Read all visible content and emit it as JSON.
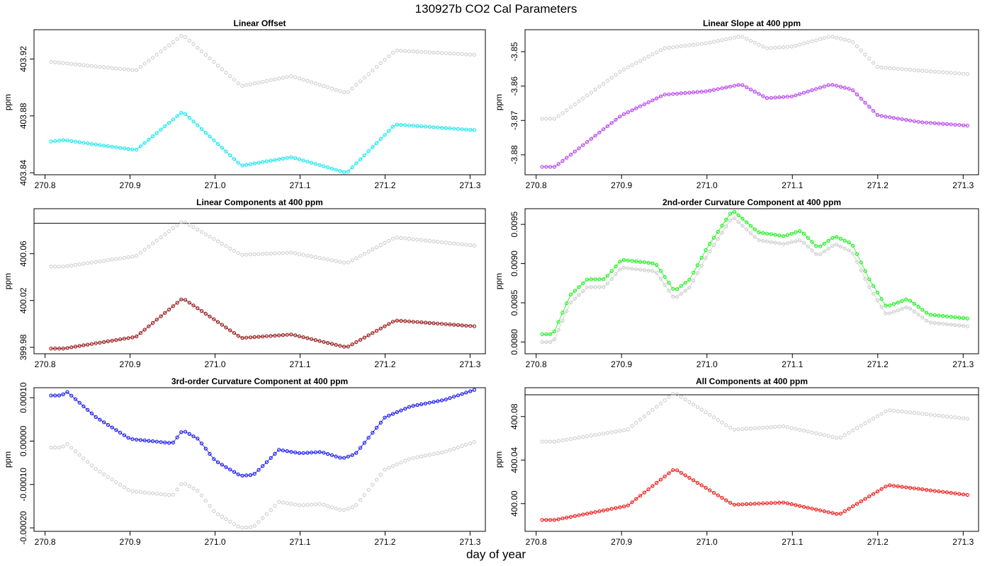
{
  "figure": {
    "title": "130927b   CO2 Cal Parameters",
    "xlabel": "day of year"
  },
  "chart_data": [
    {
      "type": "scatter",
      "title": "Linear Offset",
      "xlabel": "",
      "ylabel": "ppm",
      "xlim": [
        270.787,
        271.318
      ],
      "ylim": [
        403.8386,
        403.9406
      ],
      "xticks": [
        "270.8",
        "270.9",
        "271.0",
        "271.1",
        "271.2",
        "271.3"
      ],
      "xtick_values": [
        270.8,
        270.9,
        271.0,
        271.1,
        271.2,
        271.3
      ],
      "yticks": [
        "403.84",
        "403.88",
        "403.92"
      ],
      "ytick_values": [
        403.84,
        403.88,
        403.92
      ],
      "hline": null,
      "series": [
        {
          "role": "reference",
          "color": "#c8c8c8",
          "connect": false,
          "x": [
            270.807,
            270.907,
            270.962,
            271.031,
            271.09,
            271.155,
            271.212,
            271.305
          ],
          "y": [
            403.918,
            403.912,
            403.937,
            403.901,
            403.908,
            403.896,
            403.926,
            403.923
          ]
        },
        {
          "role": "current",
          "color": "#00e5ee",
          "connect": true,
          "x": [
            270.807,
            270.822,
            270.907,
            270.962,
            271.031,
            271.09,
            271.155,
            271.212,
            271.305
          ],
          "y": [
            403.862,
            403.863,
            403.856,
            403.883,
            403.845,
            403.851,
            403.84,
            403.874,
            403.87
          ]
        }
      ]
    },
    {
      "type": "scatter",
      "title": "Linear Slope at 400 ppm",
      "xlabel": "",
      "ylabel": "ppm",
      "xlim": [
        270.787,
        271.318
      ],
      "ylim": [
        -3.8858,
        -3.8436
      ],
      "xticks": [
        "270.8",
        "270.9",
        "271.0",
        "271.1",
        "271.2",
        "271.3"
      ],
      "xtick_values": [
        270.8,
        270.9,
        271.0,
        271.1,
        271.2,
        271.3
      ],
      "yticks": [
        "-3.88",
        "-3.87",
        "-3.86",
        "-3.85"
      ],
      "ytick_values": [
        -3.88,
        -3.87,
        -3.86,
        -3.85
      ],
      "hline": null,
      "series": [
        {
          "role": "reference",
          "color": "#c8c8c8",
          "connect": false,
          "x": [
            270.807,
            270.822,
            270.9,
            270.95,
            271.0,
            271.04,
            271.07,
            271.1,
            271.145,
            271.17,
            271.2,
            271.25,
            271.305
          ],
          "y": [
            -3.8695,
            -3.8695,
            -3.8555,
            -3.849,
            -3.8475,
            -3.8455,
            -3.849,
            -3.8485,
            -3.8455,
            -3.847,
            -3.8545,
            -3.8555,
            -3.8565
          ]
        },
        {
          "role": "current",
          "color": "#b030e8",
          "connect": true,
          "x": [
            270.807,
            270.822,
            270.9,
            270.95,
            271.0,
            271.04,
            271.07,
            271.1,
            271.145,
            271.17,
            271.2,
            271.25,
            271.305
          ],
          "y": [
            -3.8835,
            -3.8835,
            -3.8685,
            -3.8625,
            -3.8615,
            -3.8595,
            -3.8635,
            -3.863,
            -3.8595,
            -3.861,
            -3.8685,
            -3.8705,
            -3.8715
          ]
        }
      ]
    },
    {
      "type": "scatter",
      "title": "Linear Components at 400 ppm",
      "xlabel": "",
      "ylabel": "ppm",
      "xlim": [
        270.787,
        271.318
      ],
      "ylim": [
        399.9745,
        400.0985
      ],
      "xticks": [
        "270.8",
        "270.9",
        "271.0",
        "271.1",
        "271.2",
        "271.3"
      ],
      "xtick_values": [
        270.8,
        270.9,
        271.0,
        271.1,
        271.2,
        271.3
      ],
      "yticks": [
        "399.98",
        "400.02",
        "400.06"
      ],
      "ytick_values": [
        399.98,
        400.02,
        400.06
      ],
      "hline": 400.086,
      "series": [
        {
          "role": "reference",
          "color": "#c8c8c8",
          "connect": false,
          "x": [
            270.807,
            270.822,
            270.907,
            270.962,
            271.031,
            271.09,
            271.155,
            271.212,
            271.305
          ],
          "y": [
            400.049,
            400.049,
            400.058,
            400.088,
            400.059,
            400.061,
            400.052,
            400.074,
            400.067
          ]
        },
        {
          "role": "current",
          "color": "#8b0000",
          "connect": true,
          "x": [
            270.807,
            270.822,
            270.907,
            270.962,
            271.031,
            271.09,
            271.155,
            271.212,
            271.305
          ],
          "y": [
            399.979,
            399.979,
            399.989,
            400.022,
            399.988,
            399.991,
            399.98,
            400.003,
            399.998
          ]
        }
      ]
    },
    {
      "type": "scatter",
      "title": "2nd-order Curvature Component at 400 ppm",
      "xlabel": "",
      "ylabel": "ppm",
      "xlim": [
        270.787,
        271.318
      ],
      "ylim": [
        0.00785,
        0.0097
      ],
      "xticks": [
        "270.8",
        "270.9",
        "271.0",
        "271.1",
        "271.2",
        "271.3"
      ],
      "xtick_values": [
        270.8,
        270.9,
        271.0,
        271.1,
        271.2,
        271.3
      ],
      "yticks": [
        "0.0080",
        "0.0085",
        "0.0090",
        "0.0095"
      ],
      "ytick_values": [
        0.008,
        0.0085,
        0.009,
        0.0095
      ],
      "hline": null,
      "series": [
        {
          "role": "reference",
          "color": "#c8c8c8",
          "connect": true,
          "x": [
            270.807,
            270.82,
            270.84,
            270.86,
            270.88,
            270.9,
            270.94,
            270.962,
            270.98,
            271.0,
            271.03,
            271.06,
            271.09,
            271.11,
            271.13,
            271.15,
            271.17,
            271.19,
            271.21,
            271.235,
            271.26,
            271.305
          ],
          "y": [
            0.008,
            0.008,
            0.0085,
            0.0087,
            0.0087,
            0.00895,
            0.0089,
            0.00855,
            0.0087,
            0.0091,
            0.0096,
            0.0093,
            0.00925,
            0.0093,
            0.0091,
            0.00925,
            0.00915,
            0.0087,
            0.00835,
            0.00845,
            0.00825,
            0.0082
          ]
        },
        {
          "role": "current",
          "color": "#00ee00",
          "connect": true,
          "x": [
            270.807,
            270.82,
            270.84,
            270.86,
            270.88,
            270.9,
            270.94,
            270.962,
            270.98,
            271.0,
            271.03,
            271.06,
            271.09,
            271.11,
            271.13,
            271.15,
            271.17,
            271.19,
            271.21,
            271.235,
            271.26,
            271.305
          ],
          "y": [
            0.0081,
            0.0081,
            0.0086,
            0.0088,
            0.0088,
            0.00905,
            0.009,
            0.00865,
            0.0088,
            0.0092,
            0.00968,
            0.0094,
            0.00935,
            0.00942,
            0.0092,
            0.00935,
            0.00925,
            0.0088,
            0.00845,
            0.00855,
            0.00835,
            0.0083
          ]
        }
      ]
    },
    {
      "type": "scatter",
      "title": "3rd-order Curvature Component at 400 ppm",
      "xlabel": "",
      "ylabel": "ppm",
      "xlim": [
        270.787,
        271.318
      ],
      "ylim": [
        -0.000208,
        0.000123
      ],
      "xticks": [
        "270.8",
        "270.9",
        "271.0",
        "271.1",
        "271.2",
        "271.3"
      ],
      "xtick_values": [
        270.8,
        270.9,
        271.0,
        271.1,
        271.2,
        271.3
      ],
      "yticks": [
        "-0.00020",
        "-0.00010",
        "0.00000",
        "0.00010"
      ],
      "ytick_values": [
        -0.0002,
        -0.0001,
        0.0,
        0.0001
      ],
      "hline": null,
      "series": [
        {
          "role": "reference",
          "color": "#c8c8c8",
          "connect": false,
          "x": [
            270.807,
            270.82,
            270.825,
            270.86,
            270.9,
            270.95,
            270.962,
            270.98,
            271.0,
            271.03,
            271.045,
            271.06,
            271.075,
            271.1,
            271.125,
            271.15,
            271.165,
            271.2,
            271.23,
            271.27,
            271.305
          ],
          "y": [
            -1.5e-05,
            -1.5e-05,
            -5e-06,
            -6.5e-05,
            -0.000115,
            -0.000125,
            -9.5e-05,
            -0.000115,
            -0.000165,
            -0.0002,
            -0.000198,
            -0.00017,
            -0.00014,
            -0.000148,
            -0.000145,
            -0.00016,
            -0.00015,
            -6.5e-05,
            -4e-05,
            -2.5e-05,
            -2e-06
          ]
        },
        {
          "role": "current",
          "color": "#0000ee",
          "connect": true,
          "x": [
            270.807,
            270.82,
            270.825,
            270.86,
            270.9,
            270.95,
            270.962,
            270.98,
            271.0,
            271.03,
            271.045,
            271.06,
            271.075,
            271.1,
            271.125,
            271.15,
            271.165,
            271.2,
            271.23,
            271.27,
            271.305
          ],
          "y": [
            0.000105,
            0.000105,
            0.000115,
            5.5e-05,
            5e-06,
            -5e-06,
            2.5e-05,
            5e-06,
            -4.5e-05,
            -8e-05,
            -7.8e-05,
            -5e-05,
            -2e-05,
            -2.8e-05,
            -2.5e-05,
            -4e-05,
            -3e-05,
            5.5e-05,
            8e-05,
            9.5e-05,
            0.000118
          ]
        }
      ]
    },
    {
      "type": "scatter",
      "title": "All Components at 400 ppm",
      "xlabel": "",
      "ylabel": "ppm",
      "xlim": [
        270.787,
        271.318
      ],
      "ylim": [
        399.9745,
        400.1065
      ],
      "xticks": [
        "270.8",
        "270.9",
        "271.0",
        "271.1",
        "271.2",
        "271.3"
      ],
      "xtick_values": [
        270.8,
        270.9,
        271.0,
        271.1,
        271.2,
        271.3
      ],
      "yticks": [
        "400.00",
        "400.04",
        "400.08"
      ],
      "ytick_values": [
        400.0,
        400.04,
        400.08
      ],
      "hline": 400.1,
      "series": [
        {
          "role": "reference",
          "color": "#c8c8c8",
          "connect": false,
          "x": [
            270.807,
            270.822,
            270.907,
            270.962,
            271.031,
            271.09,
            271.155,
            271.212,
            271.305
          ],
          "y": [
            400.057,
            400.057,
            400.068,
            400.102,
            400.068,
            400.071,
            400.06,
            400.086,
            400.078
          ]
        },
        {
          "role": "current",
          "color": "#ee0000",
          "connect": true,
          "x": [
            270.807,
            270.822,
            270.907,
            270.962,
            271.031,
            271.09,
            271.155,
            271.212,
            271.305
          ],
          "y": [
            399.985,
            399.985,
            399.998,
            400.032,
            399.999,
            400.001,
            399.99,
            400.017,
            400.008
          ]
        }
      ]
    }
  ]
}
